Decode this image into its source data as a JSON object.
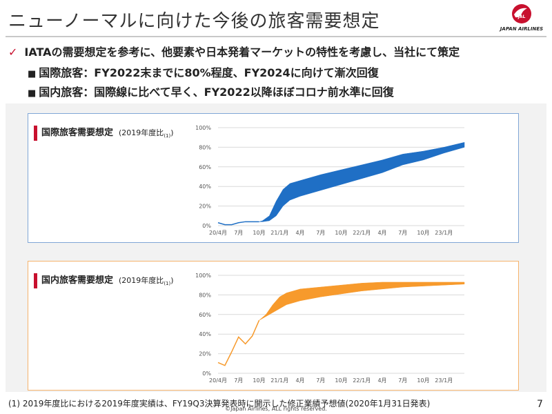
{
  "header": {
    "title": "ニューノーマルに向けた今後の旅客需要想定",
    "logo_text": "JAPAN AIRLINES"
  },
  "bullets": {
    "main": "IATAの需要想定を参考に、他要素や日本発着マーケットの特性を考慮し、当社にて策定",
    "intl": "国際旅客：FY2022末までに80%程度、FY2024に向けて漸次回復",
    "dom": "国内旅客：国際線に比べて早く、FY2022以降ほぼコロナ前水準に回復"
  },
  "colors": {
    "accent": "#c8102e",
    "intl_fill": "#1f6fc5",
    "dom_fill": "#f79a2c",
    "intl_border": "#7fa6d6",
    "dom_border": "#f5b26b"
  },
  "chart_data": [
    {
      "type": "area",
      "title": "国際旅客需要想定",
      "unit_label": "(2019年度比",
      "unit_sup": "(1)",
      "unit_close": ")",
      "x_ticks": [
        "20/4月",
        "7月",
        "10月",
        "21/1月",
        "4月",
        "7月",
        "10月",
        "22/1月",
        "4月",
        "7月",
        "10月",
        "23/1月"
      ],
      "y_ticks": [
        "0%",
        "20%",
        "40%",
        "60%",
        "80%",
        "100%"
      ],
      "ylim": [
        0,
        100
      ],
      "xlim": [
        0,
        36
      ],
      "actual": {
        "x": [
          0,
          1,
          2,
          3,
          4,
          5,
          6
        ],
        "y": [
          3,
          1,
          1,
          3,
          4,
          4,
          4
        ]
      },
      "band_upper": {
        "x": [
          6,
          6.5,
          7.5,
          8.5,
          9.5,
          10.5,
          12,
          15,
          18,
          21,
          24,
          27,
          30,
          33,
          36
        ],
        "y": [
          4,
          5,
          10,
          25,
          37,
          43,
          46,
          52,
          57,
          62,
          67,
          73,
          76,
          80,
          85
        ]
      },
      "band_lower": {
        "x": [
          6,
          6.5,
          7.5,
          8.5,
          9.5,
          10.5,
          12,
          15,
          18,
          21,
          24,
          27,
          30,
          33,
          36
        ],
        "y": [
          4,
          4,
          5,
          10,
          20,
          26,
          30,
          36,
          42,
          48,
          54,
          62,
          67,
          74,
          80
        ]
      }
    },
    {
      "type": "area",
      "title": "国内旅客需要想定",
      "unit_label": "(2019年度比",
      "unit_sup": "(1)",
      "unit_close": ")",
      "x_ticks": [
        "20/4月",
        "7月",
        "10月",
        "21/1月",
        "4月",
        "7月",
        "10月",
        "22/1月",
        "4月",
        "7月",
        "10月",
        "23/1月"
      ],
      "y_ticks": [
        "0%",
        "20%",
        "40%",
        "60%",
        "80%",
        "100%"
      ],
      "ylim": [
        0,
        100
      ],
      "xlim": [
        0,
        36
      ],
      "actual": {
        "x": [
          0,
          1,
          2,
          3,
          4,
          5,
          6
        ],
        "y": [
          11,
          8,
          22,
          37,
          30,
          38,
          54
        ]
      },
      "band_upper": {
        "x": [
          6,
          7,
          8,
          9,
          10,
          12,
          15,
          18,
          21,
          24,
          27,
          30,
          33,
          36
        ],
        "y": [
          54,
          60,
          70,
          78,
          82,
          86,
          88,
          90,
          92,
          93,
          93,
          93,
          93,
          93
        ]
      },
      "band_lower": {
        "x": [
          6,
          7,
          8,
          9,
          10,
          12,
          15,
          18,
          21,
          24,
          27,
          30,
          33,
          36
        ],
        "y": [
          54,
          58,
          62,
          66,
          70,
          74,
          78,
          81,
          84,
          86,
          88,
          89,
          90,
          91
        ]
      }
    }
  ],
  "footer": {
    "footnote": "(1) 2019年度比における2019年度実績は、FY19Q3決算発表時に開示した修正業績予想値(2020年1月31日発表)",
    "copyright": "©Japan Airlines, ALL rights reserved.",
    "page": "7"
  }
}
